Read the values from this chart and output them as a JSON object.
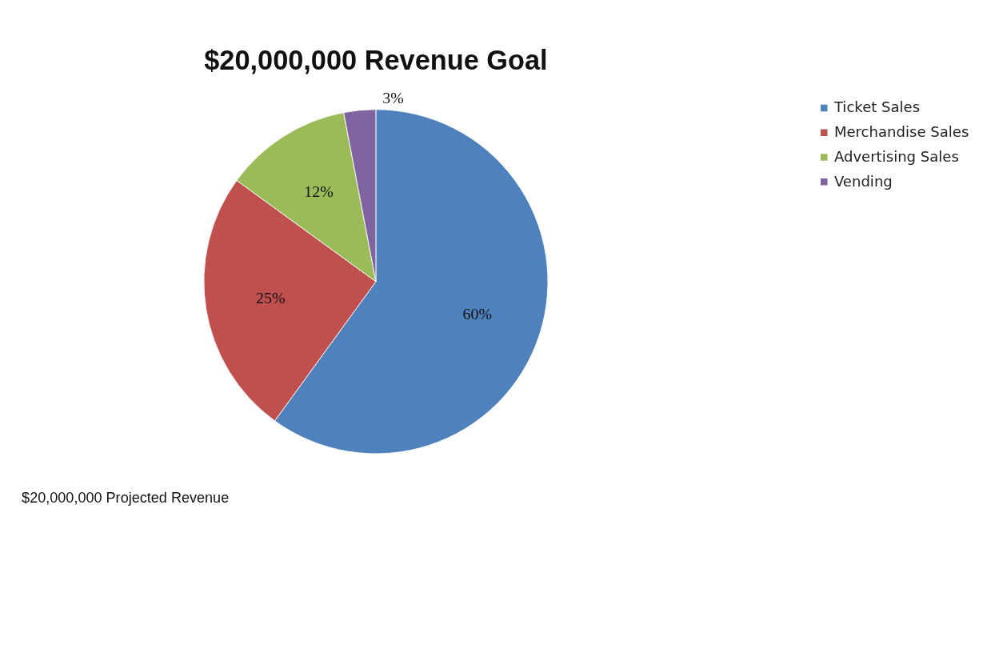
{
  "chart_data": {
    "type": "pie",
    "title": "$20,000,000 Revenue Goal",
    "categories": [
      "Ticket Sales",
      "Merchandise Sales",
      "Advertising Sales",
      "Vending"
    ],
    "values": [
      60,
      25,
      12,
      3
    ],
    "colors": [
      "#4f81bd",
      "#c0504d",
      "#9bbb59",
      "#8064a2"
    ],
    "value_labels": [
      "60%",
      "25%",
      "12%",
      "3%"
    ],
    "legend": "right",
    "annotations": [
      "$20,000,000 Projected Revenue"
    ]
  }
}
